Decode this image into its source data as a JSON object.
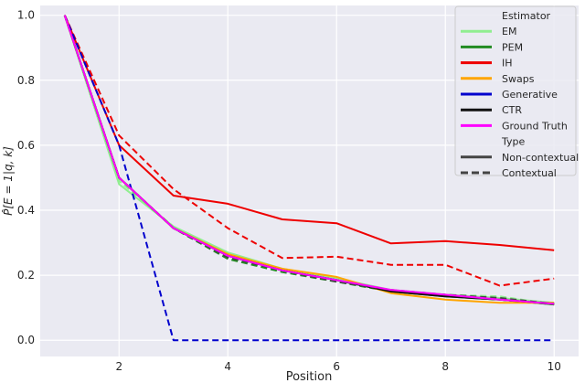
{
  "chart_data": {
    "type": "line",
    "title": "",
    "xlabel": "Position",
    "ylabel": "P̂[E = 1|q, k]",
    "xlim": [
      0.55,
      10.45
    ],
    "ylim": [
      -0.05,
      1.03
    ],
    "x": [
      1,
      2,
      3,
      4,
      5,
      6,
      7,
      8,
      9,
      10
    ],
    "xticks": [
      2,
      4,
      6,
      8,
      10
    ],
    "yticks": [
      0.0,
      0.2,
      0.4,
      0.6,
      0.8,
      1.0
    ],
    "xtick_labels": [
      "2",
      "4",
      "6",
      "8",
      "10"
    ],
    "ytick_labels": [
      "0.0",
      "0.2",
      "0.4",
      "0.6",
      "0.8",
      "1.0"
    ],
    "grid": true,
    "legend_placement": "top-right",
    "background": "#eaeaf2",
    "series": [
      {
        "name": "EM",
        "type_key": "Non-contextual",
        "color": "#90ee90",
        "values": [
          1.0,
          0.48,
          0.35,
          0.27,
          0.22,
          0.19,
          0.155,
          0.14,
          0.13,
          0.115
        ]
      },
      {
        "name": "EM",
        "type_key": "Contextual",
        "color": "#90ee90",
        "values": [
          1.0,
          0.49,
          0.35,
          0.265,
          0.215,
          0.185,
          0.15,
          0.14,
          0.135,
          0.11
        ]
      },
      {
        "name": "PEM",
        "type_key": "Non-contextual",
        "color": "#228b22",
        "values": [
          1.0,
          0.5,
          0.345,
          0.26,
          0.215,
          0.185,
          0.15,
          0.135,
          0.125,
          0.11
        ]
      },
      {
        "name": "PEM",
        "type_key": "Contextual",
        "color": "#228b22",
        "values": [
          1.0,
          0.5,
          0.345,
          0.25,
          0.21,
          0.18,
          0.15,
          0.14,
          0.125,
          0.11
        ]
      },
      {
        "name": "IH",
        "type_key": "Non-contextual",
        "color": "#ee0000",
        "values": [
          1.0,
          0.6,
          0.445,
          0.42,
          0.372,
          0.36,
          0.298,
          0.305,
          0.293,
          0.277
        ]
      },
      {
        "name": "IH",
        "type_key": "Contextual",
        "color": "#ee0000",
        "values": [
          1.0,
          0.63,
          0.465,
          0.345,
          0.253,
          0.257,
          0.232,
          0.232,
          0.168,
          0.19
        ]
      },
      {
        "name": "Swaps",
        "type_key": "Non-contextual",
        "color": "#ffa500",
        "values": [
          1.0,
          0.5,
          0.345,
          0.265,
          0.22,
          0.195,
          0.145,
          0.125,
          0.115,
          0.115
        ]
      },
      {
        "name": "Generative",
        "type_key": "Contextual",
        "color": "#0000cd",
        "values": [
          1.0,
          0.6,
          0.0,
          0.0,
          0.0,
          0.0,
          0.0,
          0.0,
          0.0,
          0.0
        ]
      },
      {
        "name": "CTR",
        "type_key": "Non-contextual",
        "color": "#111111",
        "values": [
          1.0,
          0.5,
          0.345,
          0.26,
          0.215,
          0.185,
          0.15,
          0.135,
          0.125,
          0.112
        ]
      },
      {
        "name": "CTR",
        "type_key": "Contextual",
        "color": "#444444",
        "values": [
          1.0,
          0.5,
          0.345,
          0.255,
          0.215,
          0.18,
          0.155,
          0.14,
          0.13,
          0.112
        ]
      },
      {
        "name": "Ground Truth",
        "type_key": "Non-contextual",
        "color": "#ff00ff",
        "values": [
          1.0,
          0.5,
          0.345,
          0.26,
          0.215,
          0.185,
          0.155,
          0.14,
          0.125,
          0.112
        ]
      }
    ],
    "legend": {
      "estimator_title": "Estimator",
      "estimators": [
        {
          "label": "EM",
          "color": "#90ee90"
        },
        {
          "label": "PEM",
          "color": "#228b22"
        },
        {
          "label": "IH",
          "color": "#ee0000"
        },
        {
          "label": "Swaps",
          "color": "#ffa500"
        },
        {
          "label": "Generative",
          "color": "#0000cd"
        },
        {
          "label": "CTR",
          "color": "#111111"
        },
        {
          "label": "Ground Truth",
          "color": "#ff00ff"
        }
      ],
      "type_title": "Type",
      "types": [
        {
          "label": "Non-contextual",
          "dash": "solid",
          "color": "#444444"
        },
        {
          "label": "Contextual",
          "dash": "dashed",
          "color": "#444444"
        }
      ]
    }
  }
}
